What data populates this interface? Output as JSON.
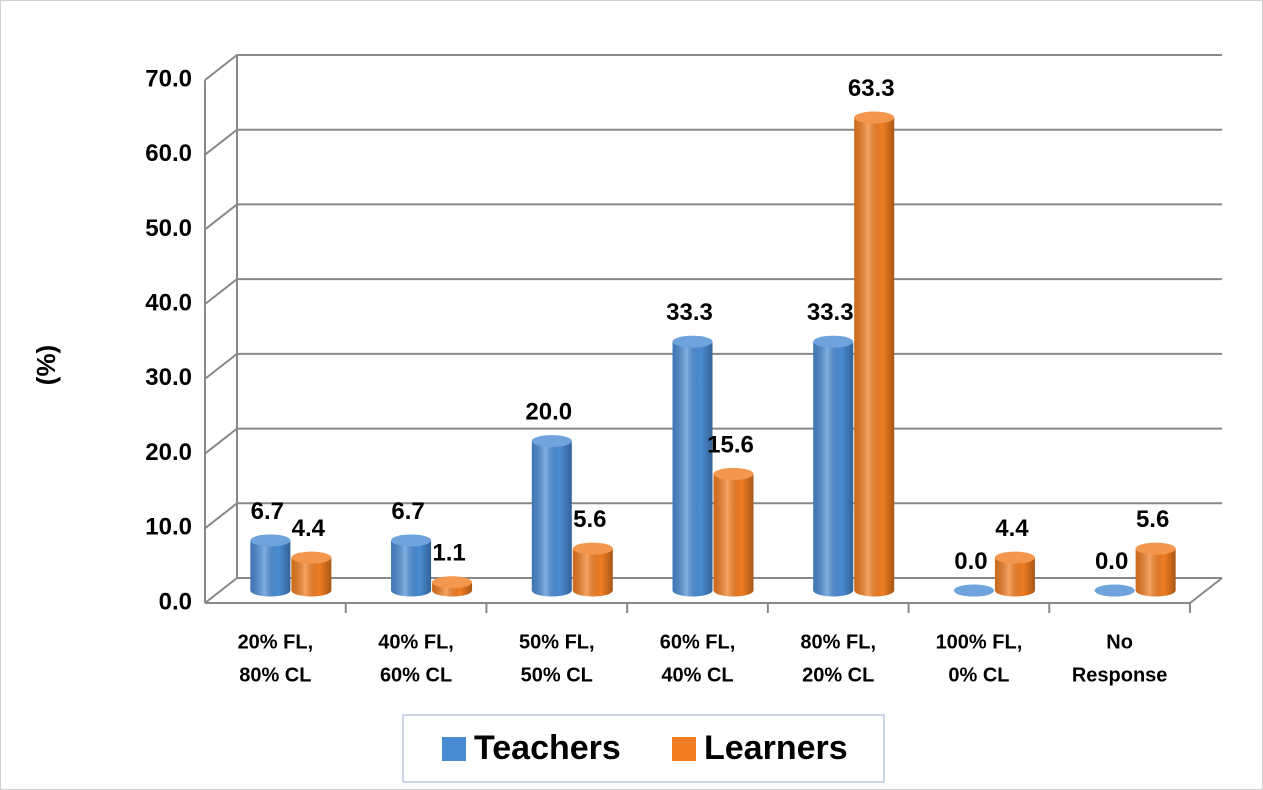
{
  "chart_data": {
    "type": "bar3d",
    "y_label": "(%)",
    "categories": [
      [
        "20% FL,",
        "80% CL"
      ],
      [
        "40% FL,",
        "60% CL"
      ],
      [
        "50% FL,",
        "50% CL"
      ],
      [
        "60% FL,",
        "40% CL"
      ],
      [
        "80% FL,",
        "20% CL"
      ],
      [
        "100% FL,",
        "0% CL"
      ],
      [
        "No",
        "Response"
      ]
    ],
    "series": [
      {
        "name": "Teachers",
        "color": "#4a8cd4",
        "values": [
          6.7,
          6.7,
          20.0,
          33.3,
          33.3,
          0.0,
          0.0
        ],
        "value_labels": [
          "6.7",
          "6.7",
          "20.0",
          "33.3",
          "33.3",
          "0.0",
          "0.0"
        ]
      },
      {
        "name": "Learners",
        "color": "#f07d22",
        "values": [
          4.4,
          1.1,
          5.6,
          15.6,
          63.3,
          4.4,
          5.6
        ],
        "value_labels": [
          "4.4",
          "1.1",
          "5.6",
          "15.6",
          "63.3",
          "4.4",
          "5.6"
        ]
      }
    ],
    "ylim": [
      0,
      70
    ],
    "yticks": [
      {
        "value": 0,
        "label": "0.0"
      },
      {
        "value": 10,
        "label": "10.0"
      },
      {
        "value": 20,
        "label": "20.0"
      },
      {
        "value": 30,
        "label": "30.0"
      },
      {
        "value": 40,
        "label": "40.0"
      },
      {
        "value": 50,
        "label": "50.0"
      },
      {
        "value": 60,
        "label": "60.0"
      },
      {
        "value": 70,
        "label": "70.0"
      }
    ],
    "grid": true,
    "legend": "bottom"
  }
}
